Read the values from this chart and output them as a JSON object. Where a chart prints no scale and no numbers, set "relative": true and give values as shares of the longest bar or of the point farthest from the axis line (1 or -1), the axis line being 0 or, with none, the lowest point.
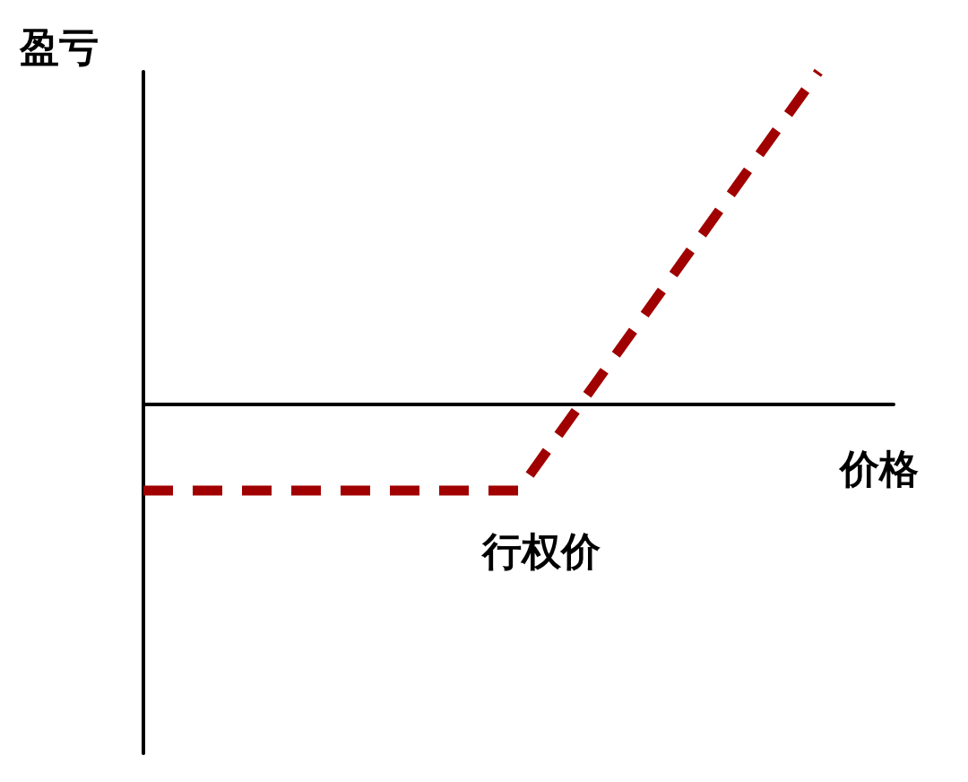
{
  "chart_data": {
    "type": "line",
    "relative": true,
    "xlabel": "价格",
    "ylabel": "盈亏",
    "categories": [
      null,
      null,
      null,
      null,
      null,
      null,
      null,
      null,
      null,
      null,
      null
    ],
    "series": [
      {
        "color": "#a00000",
        "values": [
          -0.26,
          -0.26,
          -0.26,
          -0.26,
          -0.26,
          -0.26,
          0.055,
          0.37,
          0.685,
          1,
          null
        ]
      }
    ],
    "line_style": "dashed",
    "marker": "none",
    "grid": false,
    "annotations": [
      "行权价"
    ]
  }
}
